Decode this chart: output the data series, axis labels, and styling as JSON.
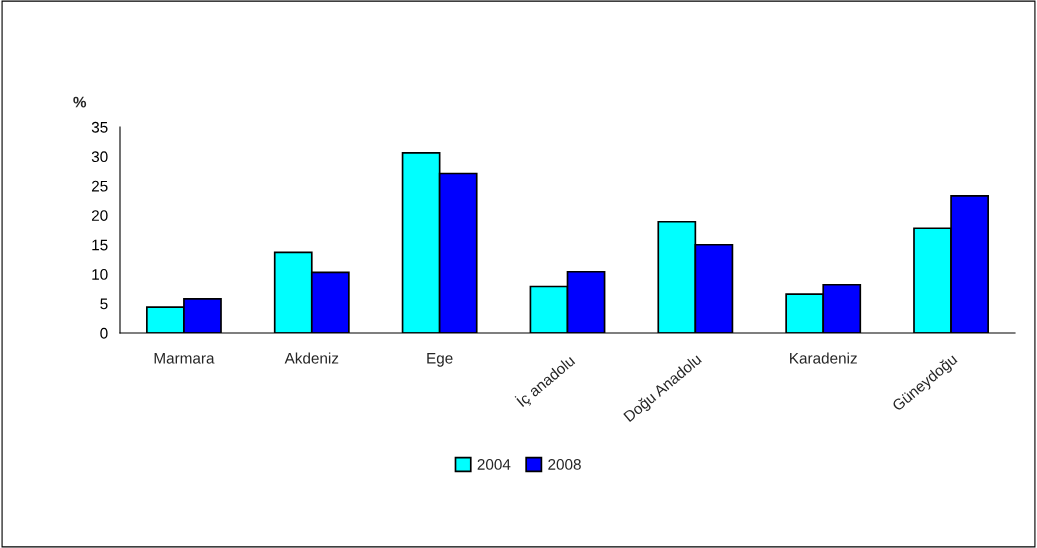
{
  "chart_data": {
    "type": "bar",
    "ylabel": "%",
    "categories": [
      "Marmara",
      "Akdeniz",
      "Ege",
      "İç anadolu",
      "Doğu Anadolu",
      "Karadeniz",
      "Güneydoğu"
    ],
    "series": [
      {
        "name": "2004",
        "color": "#00ffff",
        "values": [
          4.4,
          13.7,
          30.6,
          7.9,
          18.9,
          6.6,
          17.8
        ]
      },
      {
        "name": "2008",
        "color": "#0000ff",
        "values": [
          5.8,
          10.3,
          27.1,
          10.4,
          15.0,
          8.2,
          23.3
        ]
      }
    ],
    "ylim": [
      0,
      35
    ],
    "yticks": [
      0,
      5,
      10,
      15,
      20,
      25,
      30,
      35
    ],
    "grid": false,
    "legend": "bottom"
  }
}
